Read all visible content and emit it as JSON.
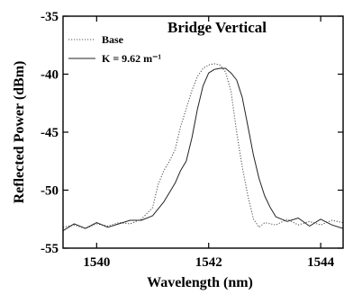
{
  "chart_data": {
    "type": "line",
    "title": "Bridge Vertical",
    "xlabel": "Wavelength (nm)",
    "ylabel": "Reflected Power (dBm)",
    "xlim": [
      1539.4,
      1544.4
    ],
    "ylim": [
      -55,
      -35
    ],
    "xticks": [
      1540,
      1542,
      1544
    ],
    "yticks": [
      -55,
      -50,
      -45,
      -40,
      -35
    ],
    "grid": false,
    "legend_position": "top-left",
    "series": [
      {
        "name": "Base",
        "style": "dotted",
        "color": "#555555",
        "x": [
          1539.4,
          1539.6,
          1539.8,
          1540.0,
          1540.2,
          1540.4,
          1540.6,
          1540.8,
          1541.0,
          1541.1,
          1541.2,
          1541.3,
          1541.4,
          1541.5,
          1541.6,
          1541.7,
          1541.8,
          1541.9,
          1542.0,
          1542.1,
          1542.2,
          1542.3,
          1542.4,
          1542.5,
          1542.6,
          1542.7,
          1542.8,
          1542.9,
          1543.0,
          1543.2,
          1543.4,
          1543.6,
          1543.8,
          1544.0,
          1544.2,
          1544.4
        ],
        "y": [
          -53.2,
          -53.0,
          -53.3,
          -52.9,
          -53.1,
          -52.8,
          -52.9,
          -52.5,
          -51.5,
          -49.5,
          -48.3,
          -47.5,
          -46.5,
          -44.5,
          -43.0,
          -41.4,
          -40.2,
          -39.5,
          -39.2,
          -39.1,
          -39.2,
          -39.8,
          -41.5,
          -45.0,
          -48.0,
          -50.5,
          -52.5,
          -53.2,
          -52.8,
          -53.0,
          -52.5,
          -53.0,
          -52.7,
          -53.0,
          -52.6,
          -52.8
        ]
      },
      {
        "name": "K = 9.62 m⁻¹",
        "style": "solid",
        "color": "#222222",
        "x": [
          1539.4,
          1539.6,
          1539.8,
          1540.0,
          1540.2,
          1540.4,
          1540.6,
          1540.8,
          1541.0,
          1541.2,
          1541.3,
          1541.4,
          1541.5,
          1541.6,
          1541.7,
          1541.8,
          1541.9,
          1542.0,
          1542.1,
          1542.2,
          1542.3,
          1542.4,
          1542.5,
          1542.6,
          1542.7,
          1542.8,
          1542.9,
          1543.0,
          1543.1,
          1543.2,
          1543.4,
          1543.6,
          1543.8,
          1544.0,
          1544.2,
          1544.4
        ],
        "y": [
          -53.5,
          -52.9,
          -53.3,
          -52.8,
          -53.2,
          -52.9,
          -52.6,
          -52.6,
          -52.2,
          -51.0,
          -50.2,
          -49.4,
          -48.3,
          -47.5,
          -45.5,
          -43.0,
          -41.0,
          -39.9,
          -39.6,
          -39.5,
          -39.5,
          -39.9,
          -40.5,
          -42.0,
          -44.5,
          -47.0,
          -49.0,
          -50.5,
          -51.5,
          -52.3,
          -52.7,
          -52.4,
          -53.1,
          -52.5,
          -53.0,
          -53.3
        ]
      }
    ]
  }
}
